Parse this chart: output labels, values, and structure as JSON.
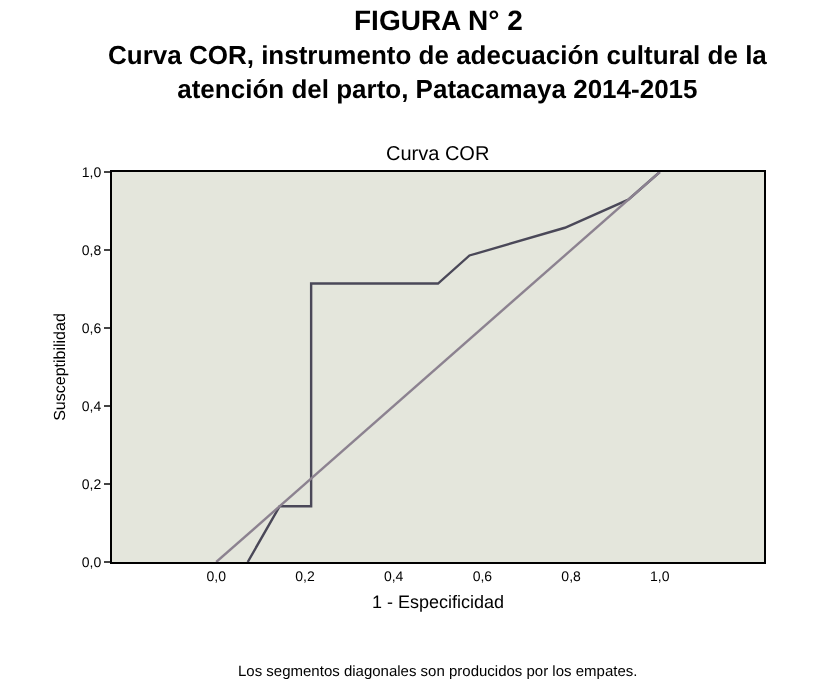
{
  "chart_data": {
    "type": "line",
    "title": "FIGURA N° 2",
    "subtitle": "Curva COR, instrumento de adecuación cultural de la atención del parto, Patacamaya 2014-2015",
    "xlabel": "1 - Especificidad",
    "ylabel": "Susceptibilidad",
    "annotations": [
      "Curva COR",
      "Los segmentos diagonales son producidos por los empates."
    ],
    "series": [
      {
        "color": "#4a4858",
        "x": [
          0.071,
          0.143,
          0.214,
          0.214,
          0.5,
          0.571,
          0.786,
          0.929,
          1.0
        ],
        "values": [
          0,
          0.143,
          0.143,
          0.714,
          0.714,
          0.786,
          0.857,
          0.929,
          1.0
        ]
      },
      {
        "color": "#8c8290",
        "x": [
          0,
          1
        ],
        "values": [
          0,
          1
        ]
      }
    ],
    "xlim": [
      -0.235,
      1.235
    ],
    "ylim": [
      0,
      1
    ],
    "xticks": [
      {
        "value": 0,
        "label": "0,0"
      },
      {
        "value": 0.2,
        "label": "0,2"
      },
      {
        "value": 0.4,
        "label": "0,4"
      },
      {
        "value": 0.6,
        "label": "0,6"
      },
      {
        "value": 0.8,
        "label": "0,8"
      },
      {
        "value": 1,
        "label": "1,0"
      }
    ],
    "yticks": [
      {
        "value": 0,
        "label": "0,0"
      },
      {
        "value": 0.2,
        "label": "0,2"
      },
      {
        "value": 0.4,
        "label": "0,4"
      },
      {
        "value": 0.6,
        "label": "0,6"
      },
      {
        "value": 0.8,
        "label": "0,8"
      },
      {
        "value": 1,
        "label": "1,0"
      }
    ],
    "grid": false,
    "marker": "none",
    "line_style": "solid"
  }
}
